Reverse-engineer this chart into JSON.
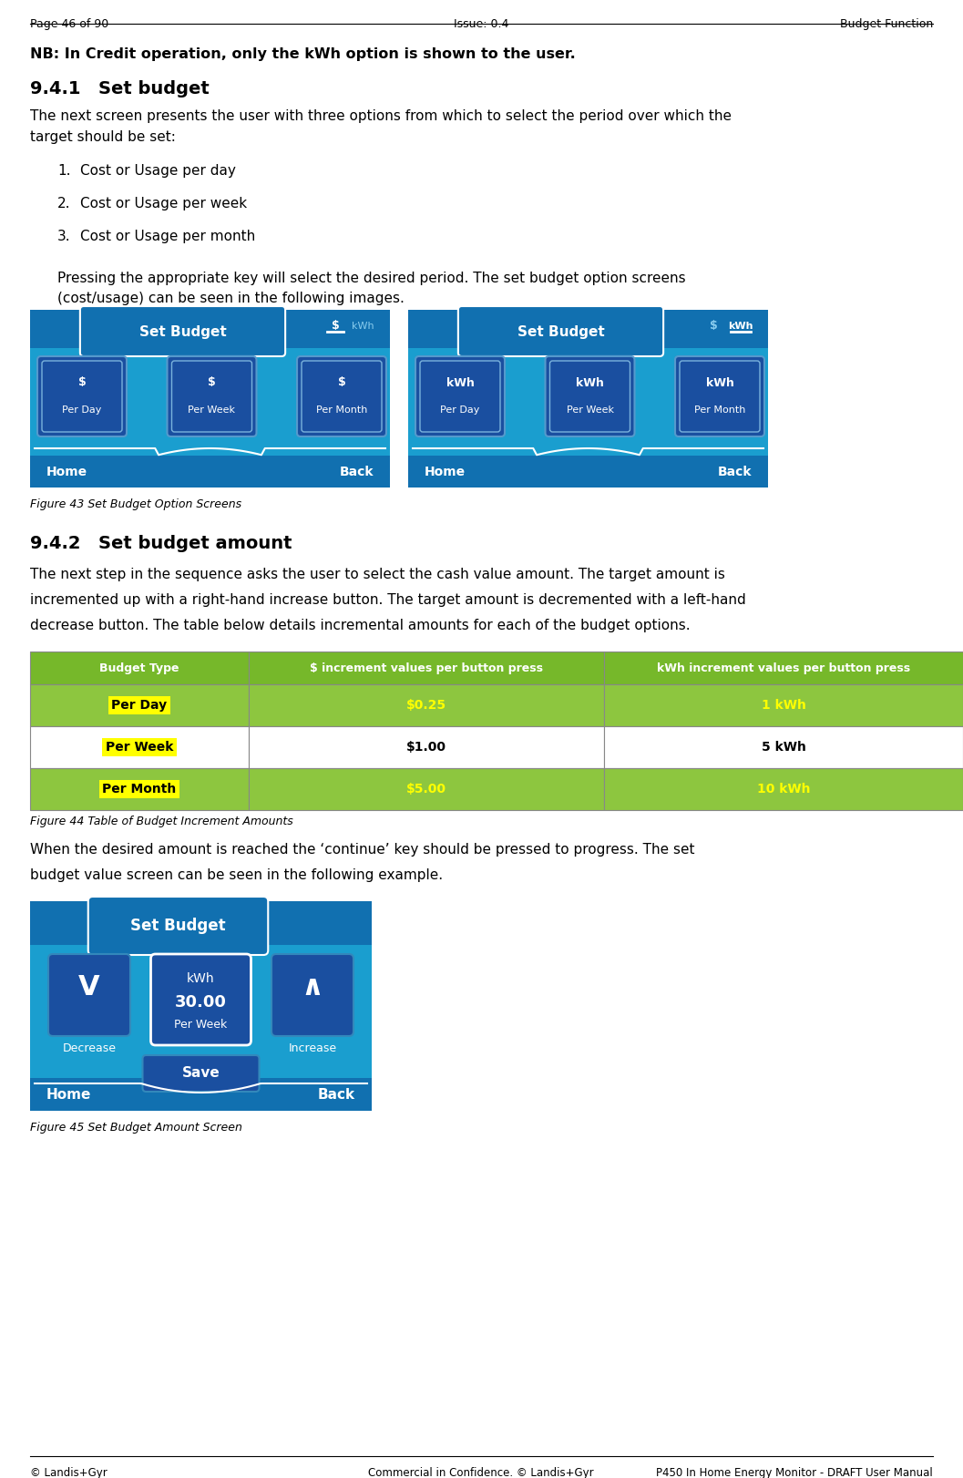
{
  "page_header_left": "Page 46 of 90",
  "page_header_center": "Issue: 0.4",
  "page_header_right": "Budget Function",
  "nb_text": "NB: In Credit operation, only the kWh option is shown to the user.",
  "section_941": "9.4.1",
  "section_941_title": "Set budget",
  "body_941_line1": "The next screen presents the user with three options from which to select the period over which the",
  "body_941_line2": "target should be set:",
  "list_items": [
    "Cost or Usage per day",
    "Cost or Usage per week",
    "Cost or Usage per month"
  ],
  "body_941b_line1": "Pressing the appropriate key will select the desired period. The set budget option screens",
  "body_941b_line2": "(cost/usage) can be seen in the following images.",
  "fig43_caption": "Figure 43 Set Budget Option Screens",
  "section_942": "9.4.2",
  "section_942_title": "Set budget amount",
  "body_942_line1": "The next step in the sequence asks the user to select the cash value amount. The target amount is",
  "body_942_line2": "incremented up with a right-hand increase button. The target amount is decremented with a left-hand",
  "body_942_line3": "decrease button. The table below details incremental amounts for each of the budget options.",
  "table_header": [
    "Budget Type",
    "$ increment values per button press",
    "kWh increment values per button press"
  ],
  "table_header_bg": "#76b82a",
  "table_header_color": "#ffffff",
  "table_row_bg_green": "#8dc63f",
  "table_row_bg_white": "#ffffff",
  "table_rows": [
    [
      "Per Day",
      "$0.25",
      "1 kWh"
    ],
    [
      "Per Week",
      "$1.00",
      "5 kWh"
    ],
    [
      "Per Month",
      "$5.00",
      "10 kWh"
    ]
  ],
  "table_highlight_color": "#ffff00",
  "table_border_color": "#888888",
  "body_942b_line1": "When the desired amount is reached the ‘continue’ key should be pressed to progress. The set",
  "body_942b_line2": "budget value screen can be seen in the following example.",
  "fig44_caption": "Figure 44 Table of Budget Increment Amounts",
  "fig45_caption": "Figure 45 Set Budget Amount Screen",
  "footer_left": "© Landis+Gyr",
  "footer_center": "Commercial in Confidence. © Landis+Gyr",
  "footer_right": "P450 In Home Energy Monitor - DRAFT User Manual",
  "screen_bg_light": "#29b6e8",
  "screen_bg_mid": "#1a9ecf",
  "screen_bg_dark": "#1170b0",
  "screen_header_bg": "#1a9ecf",
  "screen_title": "Set Budget",
  "screen_button_bg": "#1a4fa0",
  "screen_bottom_bg": "#1a85c0",
  "screen_home_back_color": "#ffffff"
}
